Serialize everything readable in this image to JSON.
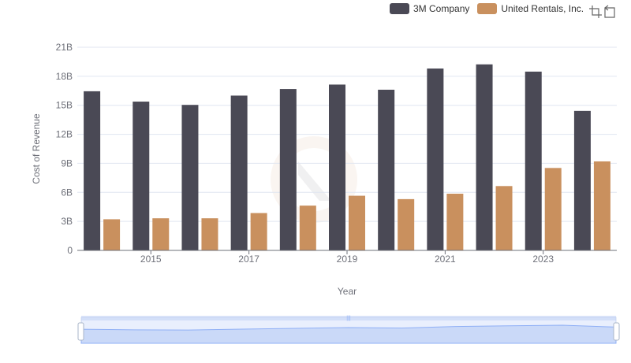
{
  "legend": {
    "items": [
      {
        "label": "3M Company",
        "color": "#4a4955"
      },
      {
        "label": "United Rentals, Inc.",
        "color": "#c9905e"
      }
    ]
  },
  "toolbox": {
    "icons": [
      "zoom-icon",
      "restore-icon"
    ]
  },
  "chart_data": {
    "type": "bar",
    "x": [
      2014,
      2015,
      2016,
      2017,
      2018,
      2019,
      2020,
      2021,
      2022,
      2023,
      2024
    ],
    "x_tick_labels": [
      "2015",
      "2017",
      "2019",
      "2021",
      "2023"
    ],
    "xlabel": "Year",
    "ylabel": "Cost of Revenue",
    "ylim": [
      0,
      21000000000
    ],
    "y_tick_labels": [
      "0",
      "3B",
      "6B",
      "9B",
      "12B",
      "15B",
      "18B",
      "21B"
    ],
    "grid": true,
    "legend_position": "top-right",
    "series": [
      {
        "name": "3M Company",
        "color": "#4a4955",
        "values": [
          16450000000,
          15380000000,
          15040000000,
          16000000000,
          16680000000,
          17140000000,
          16610000000,
          18800000000,
          19230000000,
          18480000000,
          14420000000
        ]
      },
      {
        "name": "United Rentals, Inc.",
        "color": "#c9905e",
        "values": [
          3220000000,
          3320000000,
          3320000000,
          3860000000,
          4630000000,
          5650000000,
          5300000000,
          5860000000,
          6650000000,
          8520000000,
          9200000000
        ]
      }
    ],
    "data_zoom": {
      "start": 0,
      "end": 100
    }
  }
}
